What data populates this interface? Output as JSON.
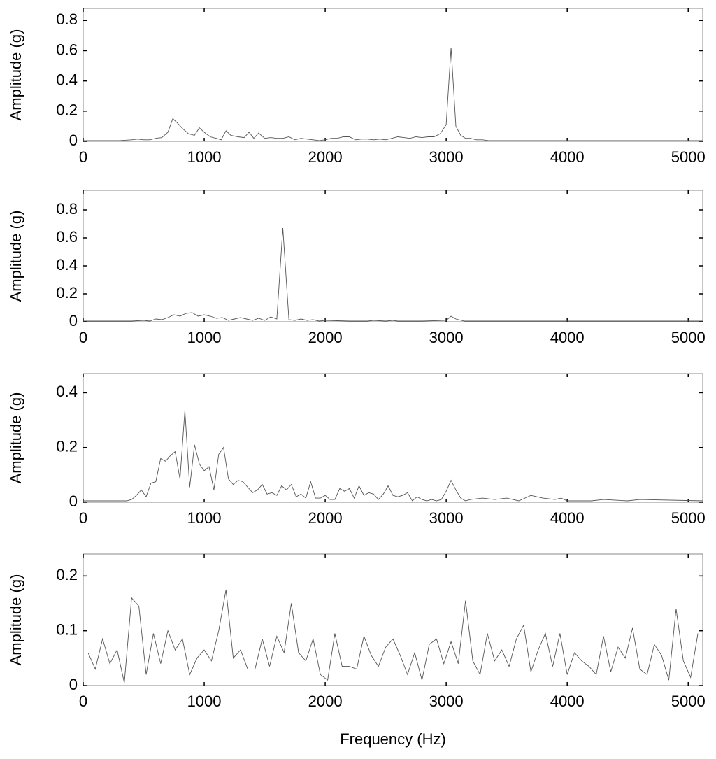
{
  "chart_data": [
    {
      "type": "line",
      "ylabel": "Amplitude (g)",
      "xlim": [
        0,
        5120
      ],
      "ylim": [
        0,
        0.88
      ],
      "xticks": [
        0,
        1000,
        2000,
        3000,
        4000,
        5000
      ],
      "yticks": [
        0,
        0.2,
        0.4,
        0.6,
        0.8
      ],
      "color": "#555555",
      "x": [
        0,
        100,
        200,
        300,
        400,
        450,
        500,
        550,
        600,
        650,
        700,
        740,
        780,
        820,
        870,
        920,
        960,
        1000,
        1050,
        1100,
        1140,
        1180,
        1220,
        1280,
        1330,
        1370,
        1410,
        1450,
        1500,
        1550,
        1600,
        1650,
        1700,
        1750,
        1800,
        1850,
        1900,
        1950,
        2000,
        2050,
        2100,
        2150,
        2200,
        2250,
        2300,
        2350,
        2400,
        2450,
        2500,
        2550,
        2600,
        2650,
        2700,
        2750,
        2800,
        2850,
        2900,
        2950,
        3000,
        3040,
        3080,
        3120,
        3160,
        3200,
        3250,
        3300,
        3350,
        3400,
        3600,
        4000,
        4500,
        5000,
        5120
      ],
      "values": [
        0.005,
        0.005,
        0.005,
        0.005,
        0.01,
        0.015,
        0.01,
        0.01,
        0.02,
        0.025,
        0.06,
        0.15,
        0.12,
        0.085,
        0.05,
        0.04,
        0.09,
        0.06,
        0.03,
        0.02,
        0.01,
        0.07,
        0.04,
        0.03,
        0.025,
        0.06,
        0.02,
        0.055,
        0.02,
        0.025,
        0.02,
        0.02,
        0.03,
        0.01,
        0.02,
        0.015,
        0.01,
        0.005,
        0.01,
        0.02,
        0.02,
        0.03,
        0.03,
        0.01,
        0.015,
        0.015,
        0.01,
        0.015,
        0.01,
        0.02,
        0.03,
        0.025,
        0.02,
        0.03,
        0.025,
        0.03,
        0.03,
        0.05,
        0.11,
        0.62,
        0.1,
        0.04,
        0.02,
        0.02,
        0.01,
        0.01,
        0.005,
        0.005,
        0.005,
        0.005,
        0.005,
        0.005,
        0.005
      ]
    },
    {
      "type": "line",
      "ylabel": "Amplitude (g)",
      "xlim": [
        0,
        5120
      ],
      "ylim": [
        0,
        0.94
      ],
      "xticks": [
        0,
        1000,
        2000,
        3000,
        4000,
        5000
      ],
      "yticks": [
        0,
        0.2,
        0.4,
        0.6,
        0.8
      ],
      "color": "#555555",
      "x": [
        0,
        200,
        400,
        500,
        550,
        600,
        650,
        700,
        750,
        800,
        850,
        900,
        950,
        1000,
        1050,
        1100,
        1150,
        1200,
        1250,
        1300,
        1350,
        1400,
        1450,
        1500,
        1550,
        1600,
        1650,
        1700,
        1750,
        1800,
        1850,
        1900,
        1950,
        2000,
        2200,
        2350,
        2400,
        2500,
        2560,
        2600,
        2800,
        3000,
        3040,
        3080,
        3150,
        3500,
        4000,
        5120
      ],
      "values": [
        0.005,
        0.005,
        0.005,
        0.01,
        0.005,
        0.02,
        0.015,
        0.03,
        0.05,
        0.04,
        0.06,
        0.065,
        0.04,
        0.05,
        0.04,
        0.025,
        0.03,
        0.01,
        0.02,
        0.03,
        0.02,
        0.01,
        0.025,
        0.01,
        0.035,
        0.02,
        0.67,
        0.015,
        0.01,
        0.02,
        0.01,
        0.015,
        0.005,
        0.01,
        0.005,
        0.005,
        0.01,
        0.005,
        0.01,
        0.005,
        0.005,
        0.01,
        0.04,
        0.02,
        0.005,
        0.005,
        0.005,
        0.005
      ]
    },
    {
      "type": "line",
      "ylabel": "Amplitude (g)",
      "xlim": [
        0,
        5120
      ],
      "ylim": [
        0,
        0.47
      ],
      "xticks": [
        0,
        1000,
        2000,
        3000,
        4000,
        5000
      ],
      "yticks": [
        0,
        0.2,
        0.4
      ],
      "color": "#555555",
      "x": [
        0,
        300,
        360,
        400,
        440,
        480,
        520,
        560,
        600,
        640,
        680,
        720,
        760,
        800,
        840,
        880,
        920,
        960,
        1000,
        1040,
        1080,
        1120,
        1160,
        1200,
        1240,
        1280,
        1320,
        1360,
        1400,
        1440,
        1480,
        1520,
        1560,
        1600,
        1640,
        1680,
        1720,
        1760,
        1800,
        1840,
        1880,
        1920,
        1960,
        2000,
        2040,
        2080,
        2120,
        2160,
        2200,
        2240,
        2280,
        2320,
        2360,
        2400,
        2440,
        2480,
        2520,
        2560,
        2600,
        2640,
        2680,
        2720,
        2760,
        2800,
        2840,
        2880,
        2920,
        2960,
        3000,
        3040,
        3080,
        3120,
        3160,
        3200,
        3300,
        3400,
        3500,
        3600,
        3650,
        3700,
        3800,
        3900,
        3950,
        4000,
        4200,
        4300,
        4500,
        4600,
        5120
      ],
      "values": [
        0.005,
        0.005,
        0.005,
        0.01,
        0.025,
        0.045,
        0.02,
        0.07,
        0.075,
        0.16,
        0.15,
        0.17,
        0.185,
        0.085,
        0.335,
        0.055,
        0.21,
        0.14,
        0.115,
        0.13,
        0.045,
        0.175,
        0.2,
        0.085,
        0.065,
        0.08,
        0.075,
        0.055,
        0.035,
        0.045,
        0.065,
        0.03,
        0.035,
        0.025,
        0.06,
        0.045,
        0.065,
        0.02,
        0.03,
        0.015,
        0.075,
        0.015,
        0.015,
        0.025,
        0.01,
        0.01,
        0.05,
        0.04,
        0.05,
        0.015,
        0.06,
        0.025,
        0.035,
        0.03,
        0.01,
        0.03,
        0.06,
        0.025,
        0.02,
        0.025,
        0.035,
        0.005,
        0.02,
        0.01,
        0.005,
        0.01,
        0.005,
        0.01,
        0.04,
        0.08,
        0.045,
        0.015,
        0.005,
        0.01,
        0.015,
        0.01,
        0.015,
        0.005,
        0.015,
        0.025,
        0.015,
        0.01,
        0.015,
        0.005,
        0.005,
        0.01,
        0.005,
        0.01,
        0.005
      ]
    },
    {
      "type": "line",
      "ylabel": "Amplitude (g)",
      "xlabel": "Frequency (Hz)",
      "xlim": [
        0,
        5120
      ],
      "ylim": [
        0,
        0.24
      ],
      "xticks": [
        0,
        1000,
        2000,
        3000,
        4000,
        5000
      ],
      "yticks": [
        0,
        0.1,
        0.2
      ],
      "color": "#555555",
      "x": [
        40,
        100,
        160,
        220,
        280,
        340,
        400,
        460,
        520,
        580,
        640,
        700,
        760,
        820,
        880,
        940,
        1000,
        1060,
        1120,
        1180,
        1240,
        1300,
        1360,
        1420,
        1480,
        1540,
        1600,
        1660,
        1720,
        1780,
        1840,
        1900,
        1960,
        2020,
        2080,
        2140,
        2200,
        2260,
        2320,
        2380,
        2440,
        2500,
        2560,
        2620,
        2680,
        2740,
        2800,
        2860,
        2920,
        2980,
        3040,
        3100,
        3160,
        3220,
        3280,
        3340,
        3400,
        3460,
        3520,
        3580,
        3640,
        3700,
        3760,
        3820,
        3880,
        3940,
        4000,
        4060,
        4120,
        4180,
        4240,
        4300,
        4360,
        4420,
        4480,
        4540,
        4600,
        4660,
        4720,
        4780,
        4840,
        4900,
        4960,
        5020,
        5080
      ],
      "values": [
        0.06,
        0.03,
        0.085,
        0.04,
        0.065,
        0.005,
        0.16,
        0.145,
        0.02,
        0.095,
        0.04,
        0.1,
        0.065,
        0.085,
        0.02,
        0.05,
        0.065,
        0.045,
        0.1,
        0.175,
        0.05,
        0.065,
        0.03,
        0.03,
        0.085,
        0.035,
        0.09,
        0.06,
        0.15,
        0.06,
        0.045,
        0.085,
        0.02,
        0.01,
        0.095,
        0.035,
        0.035,
        0.03,
        0.09,
        0.055,
        0.035,
        0.07,
        0.085,
        0.055,
        0.02,
        0.06,
        0.01,
        0.075,
        0.085,
        0.04,
        0.08,
        0.04,
        0.155,
        0.045,
        0.02,
        0.095,
        0.045,
        0.065,
        0.035,
        0.085,
        0.11,
        0.025,
        0.065,
        0.095,
        0.035,
        0.095,
        0.02,
        0.06,
        0.045,
        0.035,
        0.02,
        0.09,
        0.025,
        0.07,
        0.05,
        0.105,
        0.03,
        0.02,
        0.075,
        0.055,
        0.01,
        0.14,
        0.045,
        0.015,
        0.095
      ]
    }
  ]
}
